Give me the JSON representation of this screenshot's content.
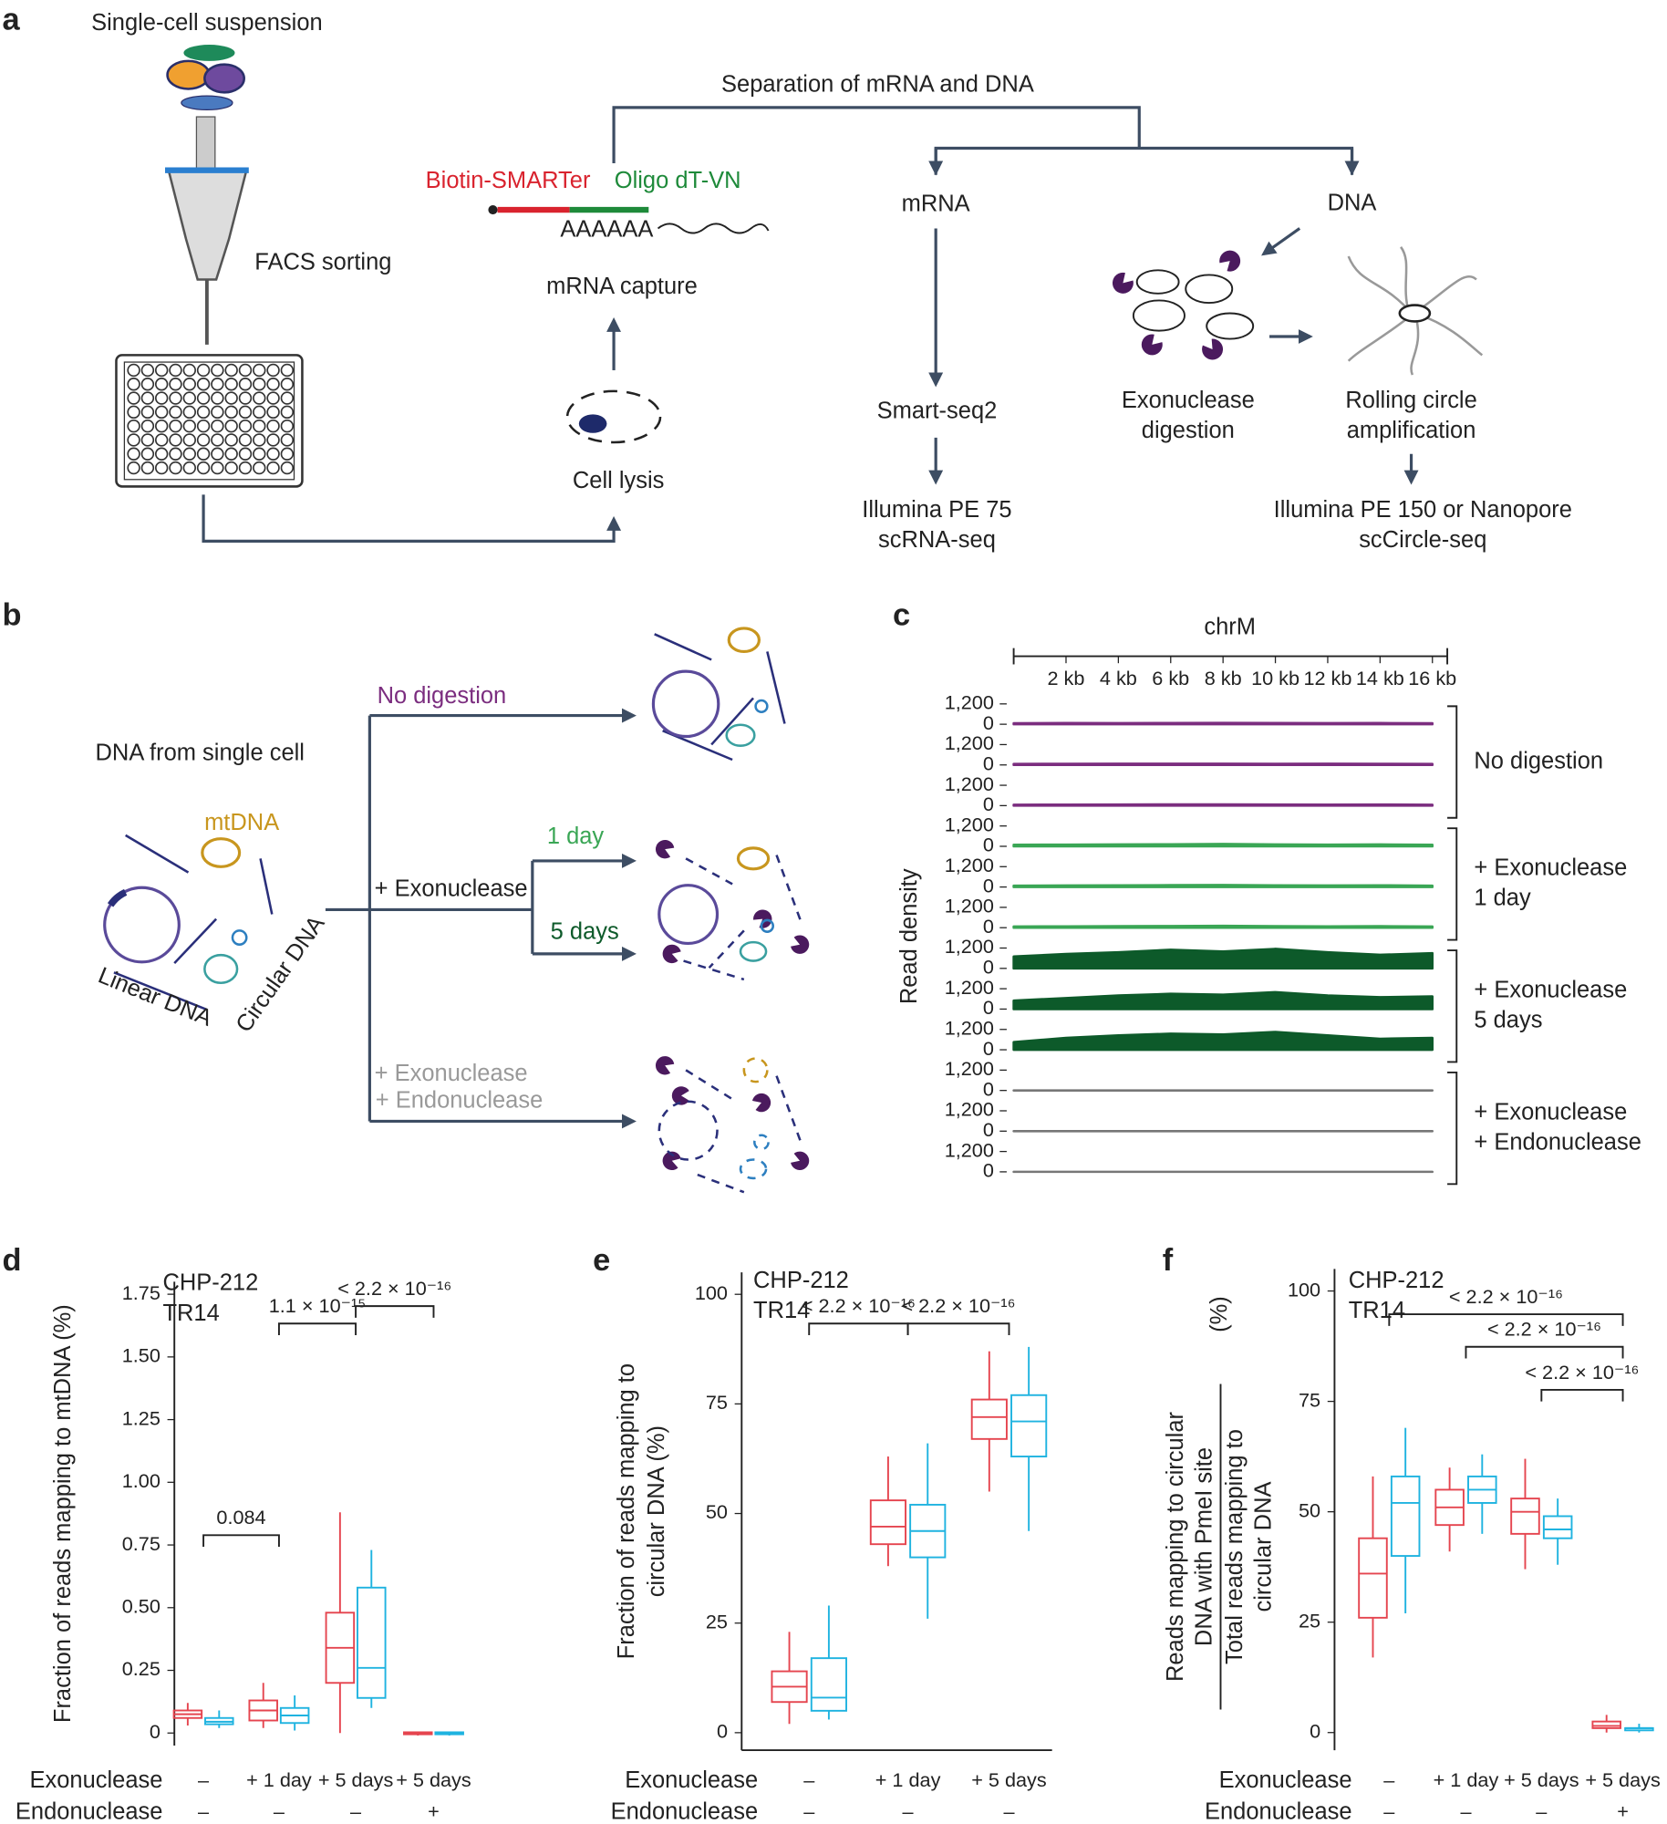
{
  "panel_labels": [
    "a",
    "b",
    "c",
    "d",
    "e",
    "f"
  ],
  "panel_a": {
    "single_cell": "Single-cell suspension",
    "facs": "FACS sorting",
    "separation": "Separation of mRNA and DNA",
    "biotin": "Biotin-SMARTer",
    "oligo": "Oligo dT-VN",
    "polya": "AAAAAA",
    "capture": "mRNA capture",
    "lysis": "Cell lysis",
    "mrna": "mRNA",
    "dna": "DNA",
    "smartseq": "Smart-seq2",
    "illumina_rna": [
      "Illumina PE 75",
      "scRNA-seq"
    ],
    "exo": [
      "Exonuclease",
      "digestion"
    ],
    "rca": [
      "Rolling circle",
      "amplification"
    ],
    "illumina_dna": [
      "Illumina PE 150 or Nanopore",
      "scCircle-seq"
    ]
  },
  "panel_b": {
    "source": "DNA from single cell",
    "mtdna": "mtDNA",
    "linear": "Linear DNA",
    "circular": "Circular DNA",
    "no_digestion": "No digestion",
    "exonuclease": "+ Exonuclease",
    "day1": "1 day",
    "day5": "5 days",
    "exo_endo": [
      "+ Exonuclease",
      "+ Endonuclease"
    ]
  },
  "chart_data": [
    {
      "type": "area",
      "title": "chrM",
      "ylabel": "Read density",
      "xlim": [
        0,
        16569
      ],
      "xticks": [
        {
          "value": 2000,
          "label": "2 kb"
        },
        {
          "value": 4000,
          "label": "4 kb"
        },
        {
          "value": 6000,
          "label": "6 kb"
        },
        {
          "value": 8000,
          "label": "8 kb"
        },
        {
          "value": 10000,
          "label": "10 kb"
        },
        {
          "value": 12000,
          "label": "12 kb"
        },
        {
          "value": 14000,
          "label": "14 kb"
        },
        {
          "value": 16000,
          "label": "16 kb"
        }
      ],
      "ylim": [
        0,
        1200
      ],
      "yticks": [
        {
          "value": 1200,
          "label": "1,200"
        },
        0
      ],
      "x": [
        0,
        2000,
        4000,
        6000,
        8000,
        10000,
        12000,
        14000,
        16000
      ],
      "series": [
        {
          "name": [
            "No digestion"
          ],
          "color": "#7b2d7f",
          "tracks": [
            [
              60,
              70,
              65,
              75,
              80,
              70,
              65,
              70,
              60
            ],
            [
              60,
              65,
              70,
              70,
              75,
              65,
              70,
              65,
              60
            ],
            [
              55,
              60,
              65,
              70,
              70,
              65,
              60,
              65,
              55
            ]
          ]
        },
        {
          "name": [
            "+ Exonuclease",
            "1 day"
          ],
          "color": "#3aa655",
          "tracks": [
            [
              90,
              100,
              110,
              120,
              140,
              110,
              100,
              110,
              90
            ],
            [
              80,
              90,
              100,
              110,
              120,
              100,
              90,
              100,
              80
            ],
            [
              70,
              80,
              90,
              100,
              110,
              90,
              80,
              90,
              70
            ]
          ]
        },
        {
          "name": [
            "+ Exonuclease",
            "5 days"
          ],
          "color": "#0d5a2a",
          "tracks": [
            [
              700,
              850,
              950,
              1100,
              1000,
              1150,
              950,
              800,
              900
            ],
            [
              500,
              650,
              800,
              900,
              850,
              1000,
              800,
              700,
              750
            ],
            [
              450,
              700,
              850,
              950,
              900,
              1050,
              850,
              650,
              700
            ]
          ]
        },
        {
          "name": [
            "+ Exonuclease",
            "+ Endonuclease"
          ],
          "color": "#777777",
          "tracks": [
            [
              0,
              0,
              0,
              0,
              0,
              0,
              0,
              0,
              0
            ],
            [
              0,
              0,
              0,
              0,
              0,
              0,
              0,
              0,
              0
            ],
            [
              0,
              0,
              0,
              0,
              0,
              0,
              0,
              0,
              0
            ]
          ]
        }
      ]
    },
    {
      "type": "box",
      "ylabel": [
        "Fraction of reads mapping to mtDNA (%)"
      ],
      "ylim": [
        -0.05,
        1.8
      ],
      "yticks": [
        0,
        0.25,
        {
          "value": 0.5,
          "label": "0.50"
        },
        0.75,
        {
          "value": 1,
          "label": "1.00"
        },
        1.25,
        {
          "value": 1.5,
          "label": "1.50"
        },
        1.75
      ],
      "conditions": [
        {
          "name": "Exonuclease",
          "labels": [
            "–",
            "+ 1 day",
            "+ 5 days",
            "+ 5 days"
          ]
        },
        {
          "name": "Endonuclease",
          "labels": [
            "–",
            "–",
            "–",
            "+"
          ]
        }
      ],
      "series": [
        {
          "name": "CHP-212",
          "color": "#e5454f",
          "boxes": [
            {
              "min": 0.03,
              "q1": 0.06,
              "median": 0.075,
              "q3": 0.09,
              "max": 0.12
            },
            {
              "min": 0.02,
              "q1": 0.05,
              "median": 0.09,
              "q3": 0.13,
              "max": 0.2
            },
            {
              "min": 0,
              "q1": 0.2,
              "median": 0.34,
              "q3": 0.48,
              "max": 0.88
            },
            {
              "min": -0.01,
              "q1": -0.005,
              "median": 0,
              "q3": 0.003,
              "max": 0.005
            }
          ]
        },
        {
          "name": "TR14",
          "color": "#1fb3e0",
          "boxes": [
            {
              "min": 0.02,
              "q1": 0.035,
              "median": 0.045,
              "q3": 0.06,
              "max": 0.09
            },
            {
              "min": 0.01,
              "q1": 0.04,
              "median": 0.07,
              "q3": 0.1,
              "max": 0.15
            },
            {
              "min": 0.1,
              "q1": 0.14,
              "median": 0.26,
              "q3": 0.58,
              "max": 0.73
            },
            {
              "min": -0.01,
              "q1": -0.005,
              "median": 0,
              "q3": 0.003,
              "max": 0.005
            }
          ]
        }
      ],
      "annotations": [
        {
          "text": "0.084",
          "groups": [
            0,
            1
          ]
        },
        {
          "text": "1.1 × 10⁻¹⁵",
          "groups": [
            1,
            2
          ]
        },
        {
          "text": "< 2.2 × 10⁻¹⁶",
          "groups": [
            2,
            3
          ]
        }
      ]
    },
    {
      "type": "box",
      "ylabel": [
        "Fraction of reads mapping to",
        "circular DNA (%)"
      ],
      "ylim": [
        -4,
        105
      ],
      "yticks": [
        0,
        25,
        50,
        75,
        100
      ],
      "conditions": [
        {
          "name": "Exonuclease",
          "labels": [
            "–",
            "+ 1 day",
            "+ 5 days"
          ]
        },
        {
          "name": "Endonuclease",
          "labels": [
            "–",
            "–",
            "–"
          ]
        }
      ],
      "series": [
        {
          "name": "CHP-212",
          "color": "#e5454f",
          "boxes": [
            {
              "min": 2,
              "q1": 7,
              "median": 10.5,
              "q3": 14,
              "max": 23
            },
            {
              "min": 38,
              "q1": 43,
              "median": 47,
              "q3": 53,
              "max": 63
            },
            {
              "min": 55,
              "q1": 67,
              "median": 72,
              "q3": 76,
              "max": 87
            }
          ]
        },
        {
          "name": "TR14",
          "color": "#1fb3e0",
          "boxes": [
            {
              "min": 3,
              "q1": 5,
              "median": 8,
              "q3": 17,
              "max": 29
            },
            {
              "min": 26,
              "q1": 40,
              "median": 46,
              "q3": 52,
              "max": 66
            },
            {
              "min": 46,
              "q1": 63,
              "median": 71,
              "q3": 77,
              "max": 88
            }
          ]
        }
      ],
      "annotations": [
        {
          "text": "< 2.2 × 10⁻¹⁶",
          "groups": [
            0,
            1
          ]
        },
        {
          "text": "< 2.2 × 10⁻¹⁶",
          "groups": [
            1,
            2
          ]
        }
      ]
    },
    {
      "type": "box",
      "ylabel": {
        "unit": "(%)",
        "numerator": [
          "Reads mapping to circular",
          "DNA with PmeI site"
        ],
        "denominator": [
          "Total reads mapping to",
          "circular DNA"
        ]
      },
      "ylim": [
        -4,
        105
      ],
      "yticks": [
        0,
        25,
        50,
        75,
        100
      ],
      "conditions": [
        {
          "name": "Exonuclease",
          "labels": [
            "–",
            "+ 1 day",
            "+ 5 days",
            "+ 5 days"
          ]
        },
        {
          "name": "Endonuclease",
          "labels": [
            "–",
            "–",
            "–",
            "+"
          ]
        }
      ],
      "series": [
        {
          "name": "CHP-212",
          "color": "#e5454f",
          "boxes": [
            {
              "min": 17,
              "q1": 26,
              "median": 36,
              "q3": 44,
              "max": 58
            },
            {
              "min": 41,
              "q1": 47,
              "median": 51,
              "q3": 55,
              "max": 60
            },
            {
              "min": 37,
              "q1": 45,
              "median": 50,
              "q3": 53,
              "max": 62
            },
            {
              "min": 0,
              "q1": 1,
              "median": 1.5,
              "q3": 2.5,
              "max": 4
            }
          ]
        },
        {
          "name": "TR14",
          "color": "#1fb3e0",
          "boxes": [
            {
              "min": 27,
              "q1": 40,
              "median": 52,
              "q3": 58,
              "max": 69
            },
            {
              "min": 45,
              "q1": 52,
              "median": 55,
              "q3": 58,
              "max": 63
            },
            {
              "min": 38,
              "q1": 44,
              "median": 46,
              "q3": 49,
              "max": 53
            },
            {
              "min": 0,
              "q1": 0.5,
              "median": 1,
              "q3": 1,
              "max": 2
            }
          ]
        }
      ],
      "annotations": [
        {
          "text": "< 2.2 × 10⁻¹⁶",
          "groups": [
            2,
            3
          ]
        },
        {
          "text": "< 2.2 × 10⁻¹⁶",
          "groups": [
            1,
            3
          ]
        },
        {
          "text": "< 2.2 × 10⁻¹⁶",
          "groups": [
            0,
            3
          ]
        }
      ]
    }
  ]
}
